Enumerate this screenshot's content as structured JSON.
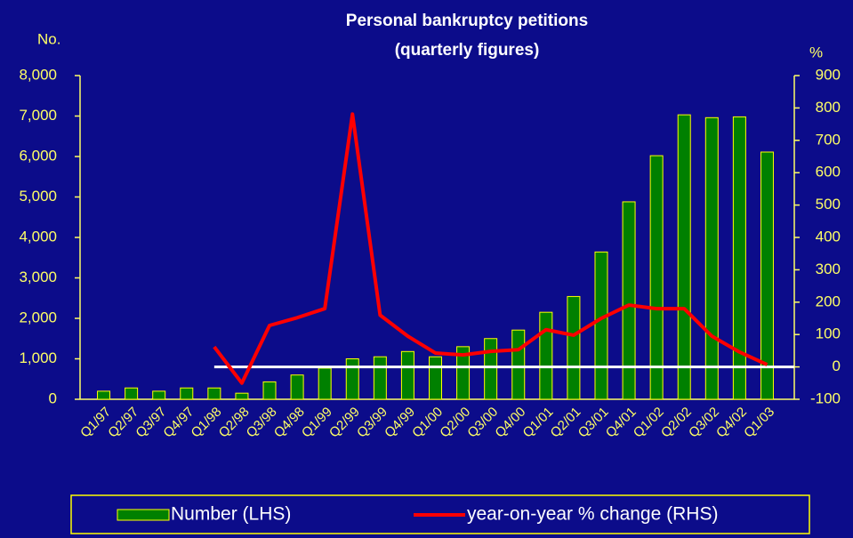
{
  "chart_data": {
    "type": "bar_line",
    "title": [
      "Personal bankruptcy petitions",
      "(quarterly figures)"
    ],
    "y_label": "No.",
    "y2_label": "%",
    "categories": [
      "Q1/97",
      "Q2/97",
      "Q3/97",
      "Q4/97",
      "Q1/98",
      "Q2/98",
      "Q3/98",
      "Q4/98",
      "Q1/99",
      "Q2/99",
      "Q3/99",
      "Q4/99",
      "Q1/00",
      "Q2/00",
      "Q3/00",
      "Q4/00",
      "Q1/01",
      "Q2/01",
      "Q3/01",
      "Q4/01",
      "Q1/02",
      "Q2/02",
      "Q3/02",
      "Q4/02",
      "Q1/03"
    ],
    "series": [
      {
        "name": "Number (LHS)",
        "type": "bar",
        "color": "#008000",
        "edge_color": "#ffff00",
        "values": [
          200,
          280,
          200,
          280,
          280,
          150,
          430,
          600,
          770,
          1000,
          1050,
          1180,
          1050,
          1300,
          1500,
          1710,
          2150,
          2540,
          3640,
          4880,
          6020,
          7030,
          6960,
          6980,
          6110
        ]
      },
      {
        "name": "year-on-year % change (RHS)",
        "type": "line",
        "color": "#ff0000",
        "axis": "y2",
        "values": [
          null,
          null,
          null,
          null,
          62,
          -50,
          128,
          152,
          180,
          781,
          160,
          95,
          43,
          37,
          48,
          53,
          115,
          98,
          150,
          191,
          180,
          180,
          95,
          46,
          7
        ]
      }
    ],
    "ylim": [
      0,
      8000
    ],
    "yticks": [
      0,
      {
        "value": 1000,
        "label": "1,000"
      },
      {
        "value": 2000,
        "label": "2,000"
      },
      {
        "value": 3000,
        "label": "3,000"
      },
      {
        "value": 4000,
        "label": "4,000"
      },
      {
        "value": 5000,
        "label": "5,000"
      },
      {
        "value": 6000,
        "label": "6,000"
      },
      {
        "value": 7000,
        "label": "7,000"
      },
      {
        "value": 8000,
        "label": "8,000"
      }
    ],
    "y2lim": [
      -100,
      900
    ],
    "y2ticks": [
      -100,
      0,
      100,
      200,
      300,
      400,
      500,
      600,
      700,
      800,
      900
    ],
    "legend": "bottom"
  }
}
